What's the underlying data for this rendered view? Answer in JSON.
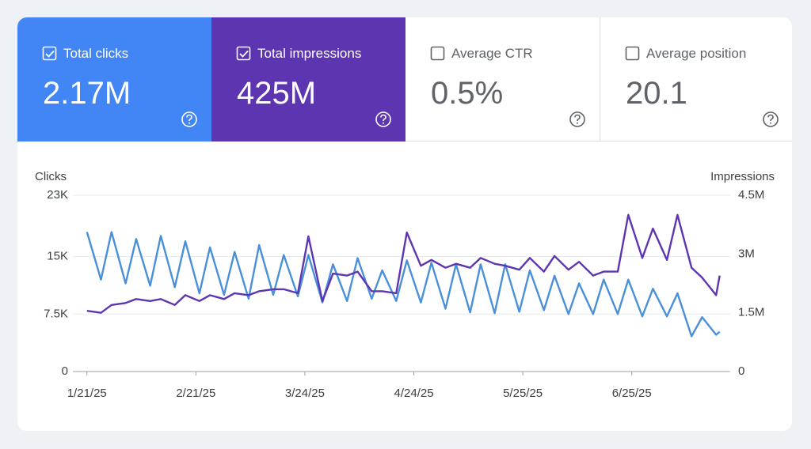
{
  "metrics": [
    {
      "label": "Total clicks",
      "value": "2.17M",
      "checked": true,
      "color": "#4285f4"
    },
    {
      "label": "Total impressions",
      "value": "425M",
      "checked": true,
      "color": "#5e35b1"
    },
    {
      "label": "Average CTR",
      "value": "0.5%",
      "checked": false
    },
    {
      "label": "Average position",
      "value": "20.1",
      "checked": false
    }
  ],
  "chart_data": {
    "type": "line",
    "x": [
      0,
      4,
      7,
      11,
      14,
      18,
      21,
      25,
      28,
      32,
      35,
      39,
      42,
      46,
      49,
      53,
      56,
      60,
      63,
      67,
      70,
      74,
      77,
      81,
      84,
      88,
      91,
      95,
      98,
      102,
      105,
      109,
      112,
      116,
      119,
      123,
      126,
      130,
      133,
      137,
      140,
      144,
      147,
      151,
      154,
      158,
      161,
      165,
      168,
      172,
      175,
      179,
      180
    ],
    "xlim": [
      -4,
      183
    ],
    "xticks": [
      {
        "value": 0,
        "label": "1/21/25"
      },
      {
        "value": 31,
        "label": "2/21/25"
      },
      {
        "value": 62,
        "label": "3/24/25"
      },
      {
        "value": 93,
        "label": "4/24/25"
      },
      {
        "value": 124,
        "label": "5/25/25"
      },
      {
        "value": 155,
        "label": "6/25/25"
      }
    ],
    "ylim": [
      0,
      23000
    ],
    "yticks": [
      0,
      {
        "value": 7500,
        "label": "7.5K"
      },
      {
        "value": 15000,
        "label": "15K"
      },
      {
        "value": 23000,
        "label": "23K"
      }
    ],
    "y2lim": [
      0,
      4500000
    ],
    "y2ticks": [
      0,
      {
        "value": 1500000,
        "label": "1.5M"
      },
      {
        "value": 3000000,
        "label": "3M"
      },
      {
        "value": 4500000,
        "label": "4.5M"
      }
    ],
    "grid": true,
    "series": [
      {
        "name": "Clicks",
        "color": "#4a90d9",
        "values": [
          18200,
          12000,
          18200,
          11500,
          17300,
          11200,
          17700,
          11000,
          17000,
          10200,
          16200,
          10000,
          15600,
          9500,
          16500,
          10000,
          15200,
          9800,
          15200,
          9000,
          14000,
          9200,
          14800,
          9500,
          13200,
          9200,
          14500,
          9000,
          14200,
          8200,
          14000,
          7700,
          14000,
          7600,
          14000,
          7800,
          13200,
          8000,
          12500,
          7500,
          11500,
          7500,
          12000,
          7500,
          12000,
          7200,
          10800,
          7200,
          10200,
          4600,
          7100,
          4800,
          5200
        ]
      },
      {
        "name": "Impressions",
        "color": "#5e35b1",
        "axis": "y2",
        "values": [
          1550000,
          1500000,
          1700000,
          1750000,
          1850000,
          1800000,
          1850000,
          1700000,
          1950000,
          1800000,
          1950000,
          1850000,
          2000000,
          1950000,
          2050000,
          2100000,
          2100000,
          2000000,
          3450000,
          1800000,
          2500000,
          2450000,
          2550000,
          2050000,
          2050000,
          2000000,
          3550000,
          2700000,
          2850000,
          2650000,
          2750000,
          2650000,
          2900000,
          2750000,
          2700000,
          2600000,
          2900000,
          2550000,
          2950000,
          2600000,
          2800000,
          2450000,
          2550000,
          2550000,
          4000000,
          2900000,
          3650000,
          2850000,
          4000000,
          2650000,
          2400000,
          1950000,
          2450000
        ]
      }
    ]
  }
}
